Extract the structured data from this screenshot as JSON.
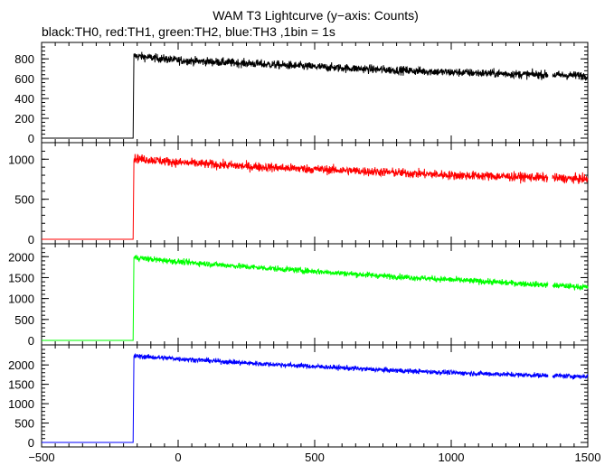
{
  "chart_data": {
    "type": "line",
    "title": "WAM T3 Lightcurve (y−axis: Counts)",
    "subtitle": "black:TH0, red:TH1, green:TH2, blue:TH3 ,1bin = 1s",
    "x_tick_labels": [
      "−500",
      "0",
      "500",
      "1000",
      "1500"
    ],
    "xlim": [
      -500,
      1500
    ],
    "x_ticks": [
      -500,
      0,
      500,
      1000,
      1500
    ],
    "grid": false,
    "bin_seconds": 1,
    "data_gap": [
      1355,
      1370
    ],
    "panels": [
      {
        "series": "TH0",
        "color": "#000000",
        "ylim": [
          0,
          920
        ],
        "y_ticks": [
          0,
          200,
          400,
          600,
          800
        ],
        "y_tick_labels": [
          "0",
          "200",
          "400",
          "600",
          "800"
        ],
        "noise": 30,
        "points": [
          [
            -500,
            0
          ],
          [
            -165,
            0
          ],
          [
            -162,
            830
          ],
          [
            0,
            785
          ],
          [
            250,
            755
          ],
          [
            500,
            720
          ],
          [
            750,
            690
          ],
          [
            1000,
            665
          ],
          [
            1250,
            645
          ],
          [
            1500,
            630
          ]
        ]
      },
      {
        "series": "TH1",
        "color": "#ff0000",
        "ylim": [
          0,
          1150
        ],
        "y_ticks": [
          0,
          500,
          1000
        ],
        "y_tick_labels": [
          "0",
          "500",
          "1000"
        ],
        "noise": 40,
        "points": [
          [
            -500,
            0
          ],
          [
            -165,
            0
          ],
          [
            -162,
            1010
          ],
          [
            0,
            960
          ],
          [
            250,
            910
          ],
          [
            500,
            875
          ],
          [
            750,
            840
          ],
          [
            1000,
            800
          ],
          [
            1250,
            780
          ],
          [
            1500,
            750
          ]
        ]
      },
      {
        "series": "TH2",
        "color": "#00ff00",
        "ylim": [
          0,
          2200
        ],
        "y_ticks": [
          0,
          500,
          1000,
          1500,
          2000
        ],
        "y_tick_labels": [
          "0",
          "500",
          "1000",
          "1500",
          "2000"
        ],
        "noise": 50,
        "points": [
          [
            -500,
            0
          ],
          [
            -165,
            0
          ],
          [
            -162,
            1980
          ],
          [
            0,
            1880
          ],
          [
            250,
            1760
          ],
          [
            500,
            1650
          ],
          [
            750,
            1540
          ],
          [
            1000,
            1450
          ],
          [
            1250,
            1360
          ],
          [
            1500,
            1270
          ]
        ]
      },
      {
        "series": "TH3",
        "color": "#0000ff",
        "ylim": [
          0,
          2400
        ],
        "y_ticks": [
          0,
          500,
          1000,
          1500,
          2000
        ],
        "y_tick_labels": [
          "0",
          "500",
          "1000",
          "1500",
          "2000"
        ],
        "noise": 45,
        "points": [
          [
            -500,
            0
          ],
          [
            -165,
            0
          ],
          [
            -162,
            2230
          ],
          [
            0,
            2160
          ],
          [
            250,
            2050
          ],
          [
            500,
            1960
          ],
          [
            750,
            1870
          ],
          [
            1000,
            1800
          ],
          [
            1250,
            1745
          ],
          [
            1500,
            1700
          ]
        ]
      }
    ]
  }
}
